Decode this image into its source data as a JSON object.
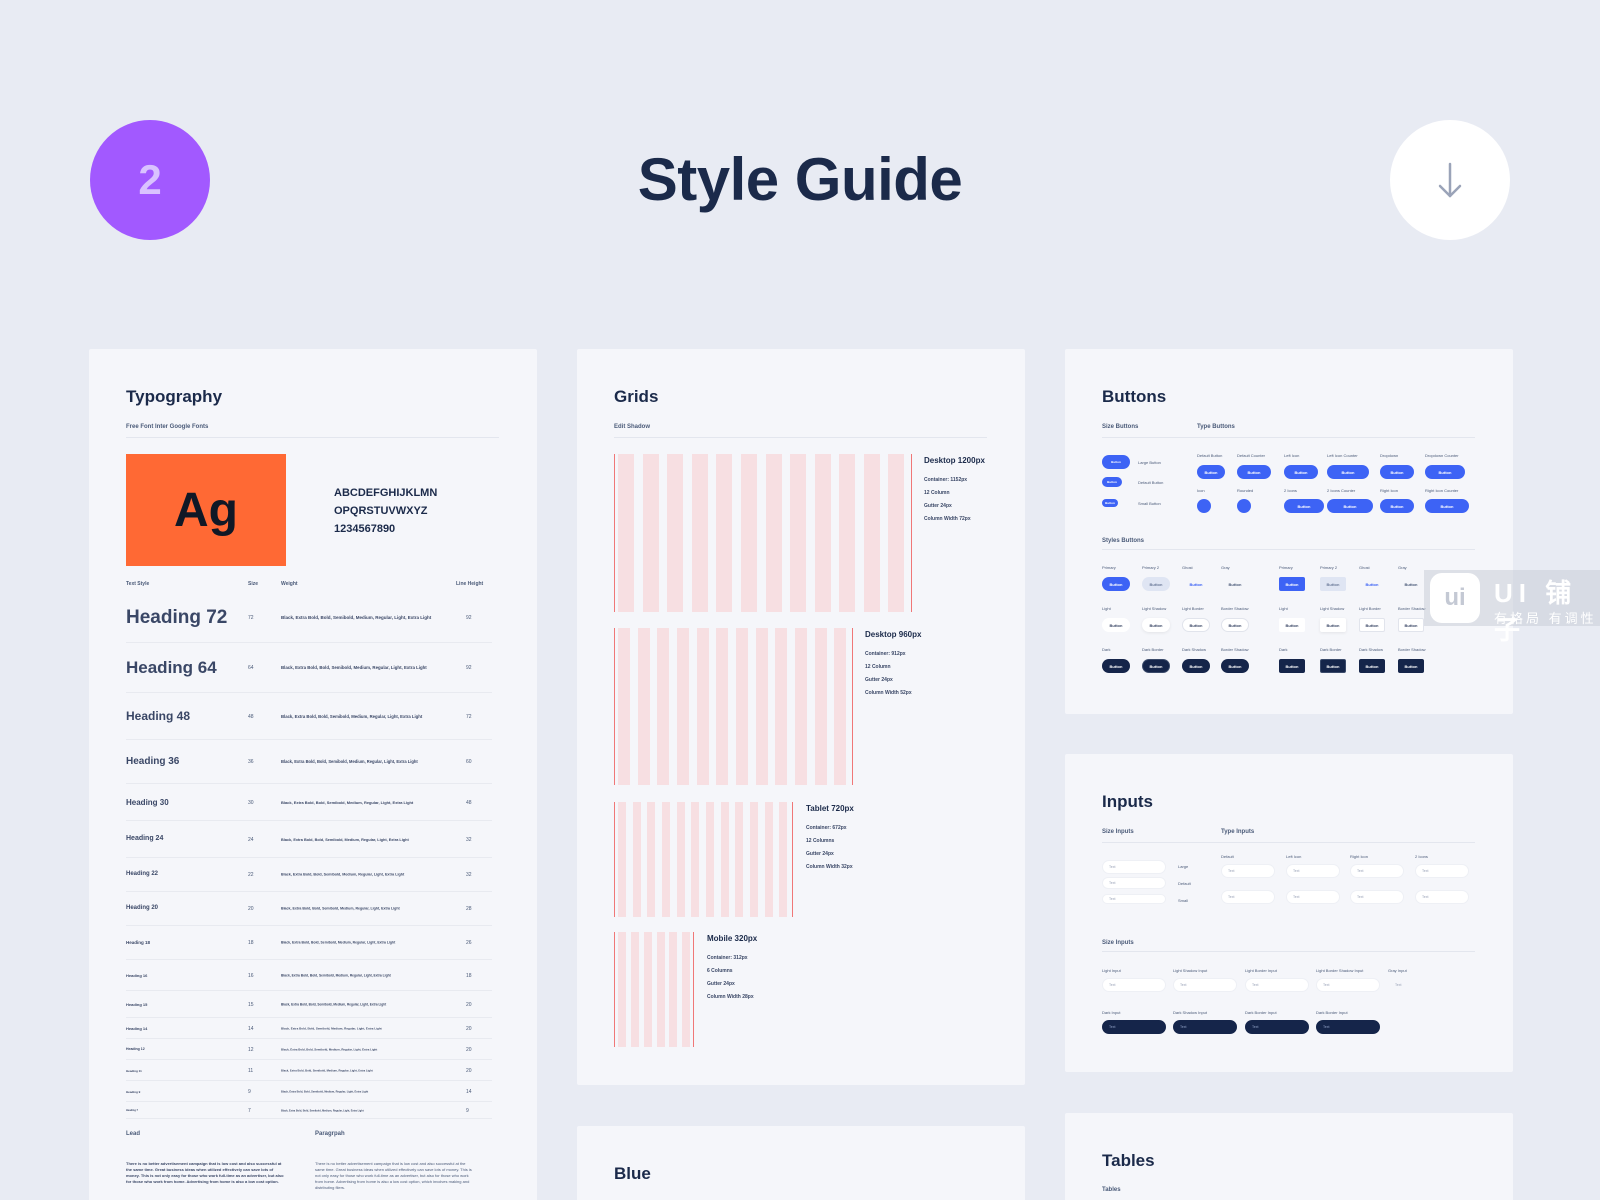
{
  "header": {
    "badge_number": "2",
    "title": "Style Guide",
    "download_icon": "arrow-down-icon"
  },
  "typography": {
    "title": "Typography",
    "subtitle": "Free Font Inter Google Fonts",
    "specimen": "Ag",
    "alphabet_line_1": "ABCDEFGHIJKLMN",
    "alphabet_line_2": "OPQRSTUVWXYZ",
    "alphabet_line_3": "1234567890",
    "columns": {
      "style": "Text Style",
      "size": "Size",
      "weight": "Weight",
      "line_height": "Line Height"
    },
    "rows": [
      {
        "name": "Heading 72",
        "size": "72",
        "weight": "Black, Extra Bold, Bold, Semibold, Medium, Regular, Light, Extra Light",
        "lh": "92"
      },
      {
        "name": "Heading 64",
        "size": "64",
        "weight": "Black, Extra Bold, Bold, Semibold, Medium, Regular, Light, Extra Light",
        "lh": "92"
      },
      {
        "name": "Heading 48",
        "size": "48",
        "weight": "Black, Extra Bold, Bold, Semibold, Medium, Regular, Light, Extra Light",
        "lh": "72"
      },
      {
        "name": "Heading 36",
        "size": "36",
        "weight": "Black, Extra Bold, Bold, Semibold, Medium, Regular, Light, Extra Light",
        "lh": "60"
      },
      {
        "name": "Heading 30",
        "size": "30",
        "weight": "Black, Extra Bold, Bold, Semibold, Medium, Regular, Light, Extra Light",
        "lh": "48"
      },
      {
        "name": "Heading 24",
        "size": "24",
        "weight": "Black, Extra Bold, Bold, Semibold, Medium, Regular, Light, Extra Light",
        "lh": "32"
      },
      {
        "name": "Heading 22",
        "size": "22",
        "weight": "Black, Extra Bold, Bold, Semibold, Medium, Regular, Light, Extra Light",
        "lh": "32"
      },
      {
        "name": "Heading 20",
        "size": "20",
        "weight": "Black, Extra Bold, Bold, Semibold, Medium, Regular, Light, Extra Light",
        "lh": "28"
      },
      {
        "name": "Heading 18",
        "size": "18",
        "weight": "Black, Extra Bold, Bold, Semibold, Medium, Regular, Light, Extra Light",
        "lh": "26"
      },
      {
        "name": "Heading 16",
        "size": "16",
        "weight": "Black, Extra Bold, Bold, Semibold, Medium, Regular, Light, Extra Light",
        "lh": "18"
      },
      {
        "name": "Heading 15",
        "size": "15",
        "weight": "Black, Extra Bold, Bold, Semibold, Medium, Regular, Light, Extra Light",
        "lh": "20"
      },
      {
        "name": "Heading 14",
        "size": "14",
        "weight": "Black, Extra Bold, Bold, Semibold, Medium, Regular, Light, Extra Light",
        "lh": "20"
      },
      {
        "name": "Heading 12",
        "size": "12",
        "weight": "Black, Extra Bold, Bold, Semibold, Medium, Regular, Light, Extra Light",
        "lh": "20"
      },
      {
        "name": "Heading 11",
        "size": "11",
        "weight": "Black, Extra Bold, Bold, Semibold, Medium, Regular, Light, Extra Light",
        "lh": "20"
      },
      {
        "name": "Heading 9",
        "size": "9",
        "weight": "Black, Extra Bold, Bold, Semibold, Medium, Regular, Light, Extra Light",
        "lh": "14"
      },
      {
        "name": "Heading 7",
        "size": "7",
        "weight": "Black, Extra Bold, Bold, Semibold, Medium, Regular, Light, Extra Light",
        "lh": "9"
      }
    ],
    "lead_label": "Lead",
    "paragraph_label": "Paragrpah",
    "lead_text": "There is no better advertisement campaign that is low cost and also successful at the same time. Great business ideas when utilized effectively can save lots of money. This is not only easy for those who work full-time as an advertiser, but also for those who work from home. Advertising from home is also a low cost option.",
    "paragraph_text": "There is no better advertisement campaign that is low cost and also successful at the same time. Great business ideas when utilized effectively can save lots of money. This is not only easy for those who work full-time as an advertiser, but also for those who work from home. Advertising from home is also a low cost option, which involves making and distributing fliers."
  },
  "grids": {
    "title": "Grids",
    "subtitle": "Edit Shadow",
    "blocks": [
      {
        "title": "Desktop 1200px",
        "lines": [
          "Container: 1152px",
          "12 Column",
          "Gutter 24px",
          "Column Width 72px"
        ]
      },
      {
        "title": "Desktop 960px",
        "lines": [
          "Container: 912px",
          "12 Column",
          "Gutter 24px",
          "Column Width 52px"
        ]
      },
      {
        "title": "Tablet 720px",
        "lines": [
          "Container: 672px",
          "12 Columns",
          "Gutter 24px",
          "Column Width 32px"
        ]
      },
      {
        "title": "Mobile 320px",
        "lines": [
          "Container: 312px",
          "6 Columns",
          "Gutter 24px",
          "Column Width 28px"
        ]
      }
    ]
  },
  "buttons": {
    "title": "Buttons",
    "size_label": "Size Buttons",
    "type_label": "Type Buttons",
    "styles_label": "Styles Buttons",
    "button_text": "Button",
    "size_items": [
      "Large Button",
      "Default Button",
      "Small Button"
    ],
    "type_row1": [
      "Default Button",
      "Default Counter",
      "Left Icon",
      "Left Icon Counter",
      "Dropdown",
      "Dropdown Counter"
    ],
    "type_row2": [
      "Icon",
      "Rounded",
      "2 Icons",
      "2 Icons Counter",
      "Right Icon",
      "Right Icon Counter"
    ],
    "style_row1": [
      "Primary",
      "Primary 2",
      "Ghost",
      "Gray"
    ],
    "style_row2": [
      "Light",
      "Light Shadow",
      "Light Border",
      "Border Shadow"
    ],
    "style_row3": [
      "Dark",
      "Dark Border",
      "Dark Shadow",
      "Border Shadow"
    ],
    "primary_color": "#3d63f5",
    "dark_color": "#15254a"
  },
  "inputs": {
    "title": "Inputs",
    "size_label": "Size Inputs",
    "type_label": "Type Inputs",
    "size_label_2": "Size Inputs",
    "placeholder": "Text",
    "size_items": [
      "Large",
      "Default",
      "Small"
    ],
    "type_items": [
      "Default",
      "Left Icon",
      "Right Icon",
      "2 Icons"
    ],
    "style_row1": [
      "Light Input",
      "Light Shadow Input",
      "Light Border Input",
      "Light Border Shadow Input",
      "Gray Input"
    ],
    "style_row2": [
      "Dark Input",
      "Dark Shadow Input",
      "Dark Border Input",
      "Dark Border Input"
    ]
  },
  "blue": {
    "title": "Blue"
  },
  "tables": {
    "title": "Tables",
    "subtitle": "Tables"
  },
  "watermark": {
    "logo": "ui",
    "name": "UI 铺子",
    "tagline": "有格局 有调性"
  }
}
